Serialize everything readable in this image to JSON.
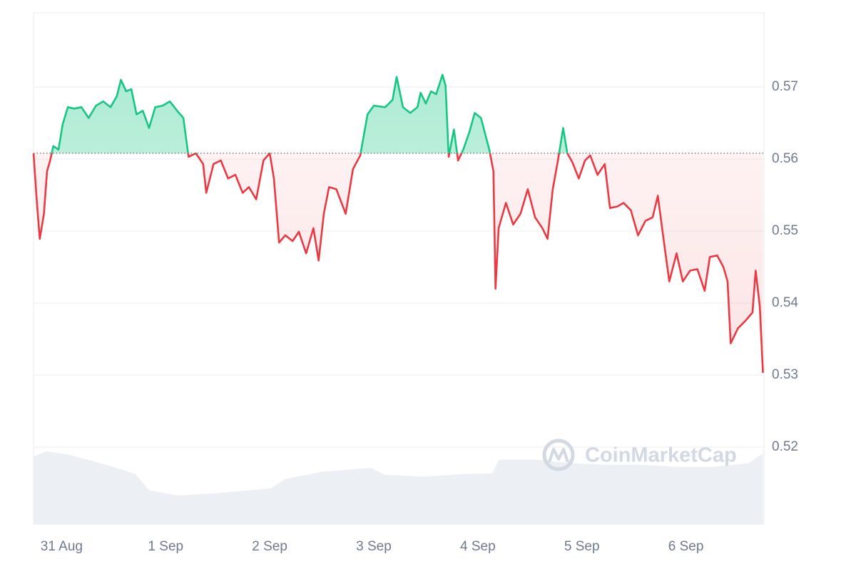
{
  "chart_data": {
    "type": "line",
    "watermark": "CoinMarketCap",
    "xlim": [
      -0.27,
      6.75
    ],
    "xticks": [
      {
        "value": 0,
        "label": "31 Aug"
      },
      {
        "value": 1,
        "label": "1 Sep"
      },
      {
        "value": 2,
        "label": "2 Sep"
      },
      {
        "value": 3,
        "label": "3 Sep"
      },
      {
        "value": 4,
        "label": "4 Sep"
      },
      {
        "value": 5,
        "label": "5 Sep"
      },
      {
        "value": 6,
        "label": "6 Sep"
      }
    ],
    "ylim": [
      0.5093,
      0.5803
    ],
    "yticks": [
      0.52,
      0.53,
      0.54,
      0.55,
      0.56,
      0.57
    ],
    "grid": true,
    "up_color": "#16c784",
    "down_color": "#ea3943",
    "x": [
      -0.27,
      -0.24,
      -0.21,
      -0.17,
      -0.14,
      -0.11,
      -0.08,
      -0.03,
      0.01,
      0.06,
      0.12,
      0.19,
      0.26,
      0.33,
      0.4,
      0.47,
      0.53,
      0.57,
      0.62,
      0.67,
      0.72,
      0.78,
      0.84,
      0.9,
      0.97,
      1.04,
      1.11,
      1.17,
      1.22,
      1.29,
      1.36,
      1.39,
      1.46,
      1.53,
      1.6,
      1.67,
      1.74,
      1.8,
      1.87,
      1.94,
      2.0,
      2.04,
      2.09,
      2.15,
      2.22,
      2.28,
      2.35,
      2.42,
      2.47,
      2.52,
      2.57,
      2.64,
      2.73,
      2.8,
      2.87,
      2.94,
      3.0,
      3.11,
      3.18,
      3.22,
      3.28,
      3.35,
      3.42,
      3.45,
      3.5,
      3.55,
      3.6,
      3.66,
      3.69,
      3.72,
      3.77,
      3.81,
      3.86,
      3.92,
      3.97,
      4.03,
      4.11,
      4.15,
      4.17,
      4.2,
      4.27,
      4.34,
      4.41,
      4.48,
      4.55,
      4.62,
      4.67,
      4.72,
      4.77,
      4.82,
      4.86,
      4.91,
      4.97,
      5.03,
      5.08,
      5.15,
      5.22,
      5.27,
      5.34,
      5.4,
      5.47,
      5.54,
      5.61,
      5.68,
      5.73,
      5.78,
      5.84,
      5.91,
      5.97,
      6.04,
      6.11,
      6.18,
      6.23,
      6.3,
      6.36,
      6.4,
      6.43,
      6.5,
      6.57,
      6.64,
      6.67,
      6.71,
      6.74
    ],
    "values": [
      0.5608,
      0.5544,
      0.5489,
      0.5524,
      0.5583,
      0.5598,
      0.5618,
      0.5613,
      0.5648,
      0.5672,
      0.567,
      0.5672,
      0.5657,
      0.5674,
      0.568,
      0.5672,
      0.5687,
      0.571,
      0.5694,
      0.5697,
      0.5662,
      0.5667,
      0.5643,
      0.5672,
      0.5674,
      0.568,
      0.5667,
      0.5657,
      0.5603,
      0.5608,
      0.5593,
      0.5553,
      0.5593,
      0.5598,
      0.5573,
      0.5578,
      0.5553,
      0.5561,
      0.5544,
      0.5598,
      0.5608,
      0.5573,
      0.5484,
      0.5494,
      0.5486,
      0.5499,
      0.5469,
      0.5504,
      0.5459,
      0.5524,
      0.5561,
      0.5558,
      0.5524,
      0.5586,
      0.5605,
      0.5662,
      0.5674,
      0.5672,
      0.5682,
      0.5714,
      0.5672,
      0.5664,
      0.5672,
      0.5692,
      0.5677,
      0.5694,
      0.569,
      0.5717,
      0.5702,
      0.5603,
      0.5641,
      0.5598,
      0.5613,
      0.5638,
      0.5664,
      0.5657,
      0.5613,
      0.5583,
      0.542,
      0.5504,
      0.5539,
      0.5509,
      0.5524,
      0.5558,
      0.5519,
      0.5504,
      0.5489,
      0.5558,
      0.5598,
      0.5643,
      0.5608,
      0.5595,
      0.5573,
      0.5598,
      0.5605,
      0.5578,
      0.5593,
      0.5532,
      0.5534,
      0.5539,
      0.5529,
      0.5494,
      0.5514,
      0.5519,
      0.5549,
      0.5494,
      0.543,
      0.5469,
      0.543,
      0.5445,
      0.5447,
      0.5417,
      0.5464,
      0.5466,
      0.545,
      0.543,
      0.5344,
      0.5365,
      0.5375,
      0.5387,
      0.5445,
      0.5395,
      0.5303
    ],
    "volume": {
      "color": "#eceff3",
      "ylim": [
        0,
        1
      ],
      "x": [
        -0.27,
        -0.15,
        0.09,
        0.43,
        0.71,
        0.84,
        1.12,
        1.46,
        1.8,
        2.01,
        2.15,
        2.49,
        2.97,
        3.11,
        3.52,
        3.86,
        4.14,
        4.2,
        4.55,
        4.89,
        5.23,
        5.58,
        5.92,
        6.26,
        6.6,
        6.74
      ],
      "values": [
        0.132,
        0.142,
        0.135,
        0.116,
        0.098,
        0.066,
        0.056,
        0.06,
        0.066,
        0.07,
        0.088,
        0.102,
        0.11,
        0.096,
        0.093,
        0.098,
        0.099,
        0.126,
        0.126,
        0.119,
        0.116,
        0.116,
        0.112,
        0.112,
        0.119,
        0.138
      ]
    }
  }
}
